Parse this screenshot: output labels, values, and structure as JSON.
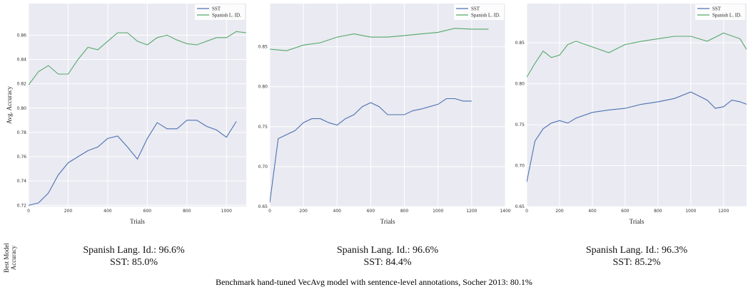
{
  "chart_data": [
    {
      "type": "line",
      "ylabel": "Avg. Accuracy",
      "xlabel": "Trials",
      "grid": true,
      "legend": "upper right",
      "xlim": [
        0,
        1100
      ],
      "xticks": [
        0,
        200,
        400,
        600,
        800,
        1000
      ],
      "ylim": [
        0.719,
        0.886
      ],
      "yticks": [
        0.72,
        0.74,
        0.76,
        0.78,
        {
          "value": 0.8,
          "label": "0.80"
        },
        0.82,
        0.84,
        0.86
      ],
      "series": [
        {
          "name": "SST",
          "color": "#4c72b0",
          "x": [
            0,
            50,
            100,
            150,
            200,
            250,
            300,
            350,
            400,
            450,
            500,
            550,
            600,
            650,
            700,
            750,
            800,
            850,
            900,
            950,
            1000,
            1050
          ],
          "values": [
            0.72,
            0.722,
            0.73,
            0.745,
            0.755,
            0.76,
            0.765,
            0.768,
            0.775,
            0.777,
            0.768,
            0.758,
            0.775,
            0.788,
            0.783,
            0.783,
            0.79,
            0.79,
            0.785,
            0.782,
            0.776,
            0.789
          ]
        },
        {
          "name": "Spanish L. ID.",
          "color": "#55a868",
          "x": [
            0,
            50,
            100,
            150,
            200,
            250,
            300,
            350,
            400,
            450,
            500,
            550,
            600,
            650,
            700,
            750,
            800,
            850,
            900,
            950,
            1000,
            1050,
            1100
          ],
          "values": [
            0.819,
            0.83,
            0.835,
            0.828,
            0.828,
            0.84,
            0.85,
            0.848,
            0.855,
            0.862,
            0.862,
            0.855,
            0.852,
            0.858,
            0.86,
            0.856,
            0.853,
            0.852,
            0.855,
            0.858,
            0.858,
            0.863,
            0.862
          ]
        }
      ]
    },
    {
      "type": "line",
      "xlabel": "Trials",
      "grid": true,
      "legend": "upper right",
      "xlim": [
        0,
        1400
      ],
      "xticks": [
        0,
        200,
        400,
        600,
        800,
        1000,
        1200,
        1400
      ],
      "ylim": [
        0.65,
        0.904
      ],
      "yticks": [
        0.65,
        {
          "value": 0.7,
          "label": "0.70"
        },
        0.75,
        {
          "value": 0.8,
          "label": "0.80"
        },
        0.85
      ],
      "series": [
        {
          "name": "SST",
          "color": "#4c72b0",
          "x": [
            0,
            50,
            100,
            150,
            200,
            250,
            300,
            350,
            400,
            450,
            500,
            550,
            600,
            650,
            700,
            750,
            800,
            850,
            900,
            950,
            1000,
            1050,
            1100,
            1150,
            1200
          ],
          "values": [
            0.655,
            0.735,
            0.74,
            0.745,
            0.755,
            0.76,
            0.76,
            0.755,
            0.752,
            0.76,
            0.765,
            0.775,
            0.78,
            0.775,
            0.765,
            0.765,
            0.765,
            0.77,
            0.772,
            0.775,
            0.778,
            0.785,
            0.785,
            0.782,
            0.782
          ]
        },
        {
          "name": "Spanish L. ID.",
          "color": "#55a868",
          "x": [
            0,
            100,
            200,
            300,
            400,
            500,
            600,
            700,
            800,
            900,
            1000,
            1100,
            1200,
            1300
          ],
          "values": [
            0.847,
            0.845,
            0.852,
            0.855,
            0.862,
            0.866,
            0.862,
            0.862,
            0.864,
            0.866,
            0.868,
            0.873,
            0.872,
            0.872
          ]
        }
      ]
    },
    {
      "type": "line",
      "xlabel": "Trials",
      "grid": true,
      "legend": "upper right",
      "xlim": [
        0,
        1340
      ],
      "xticks": [
        0,
        200,
        400,
        600,
        800,
        1000,
        1200
      ],
      "ylim": [
        0.65,
        0.898
      ],
      "yticks": [
        0.65,
        {
          "value": 0.7,
          "label": "0.70"
        },
        0.75,
        {
          "value": 0.8,
          "label": "0.80"
        },
        0.85
      ],
      "series": [
        {
          "name": "SST",
          "color": "#4c72b0",
          "x": [
            0,
            50,
            100,
            150,
            200,
            250,
            300,
            400,
            500,
            600,
            700,
            800,
            900,
            1000,
            1100,
            1150,
            1200,
            1250,
            1300,
            1340
          ],
          "values": [
            0.68,
            0.73,
            0.745,
            0.752,
            0.755,
            0.752,
            0.758,
            0.765,
            0.768,
            0.77,
            0.775,
            0.778,
            0.782,
            0.79,
            0.78,
            0.77,
            0.772,
            0.78,
            0.778,
            0.775
          ]
        },
        {
          "name": "Spanish L. ID.",
          "color": "#55a868",
          "x": [
            0,
            50,
            100,
            150,
            200,
            250,
            300,
            400,
            500,
            600,
            700,
            800,
            900,
            1000,
            1100,
            1200,
            1300,
            1340
          ],
          "values": [
            0.808,
            0.825,
            0.84,
            0.832,
            0.835,
            0.848,
            0.852,
            0.845,
            0.838,
            0.848,
            0.852,
            0.855,
            0.858,
            0.858,
            0.852,
            0.862,
            0.855,
            0.842
          ]
        }
      ]
    }
  ],
  "best_model": {
    "label": [
      "Best Model",
      "Accuracy"
    ],
    "results": [
      [
        "Spanish Lang. Id.: 96.6%",
        "SST: 85.0%"
      ],
      [
        "Spanish Lang. Id.: 96.6%",
        "SST: 84.4%"
      ],
      [
        "Spanish Lang. Id.: 96.3%",
        "SST: 85.2%"
      ]
    ]
  },
  "caption": "Benchmark hand-tuned VecAvg model with sentence-level annotations, Socher 2013: 80.1%"
}
